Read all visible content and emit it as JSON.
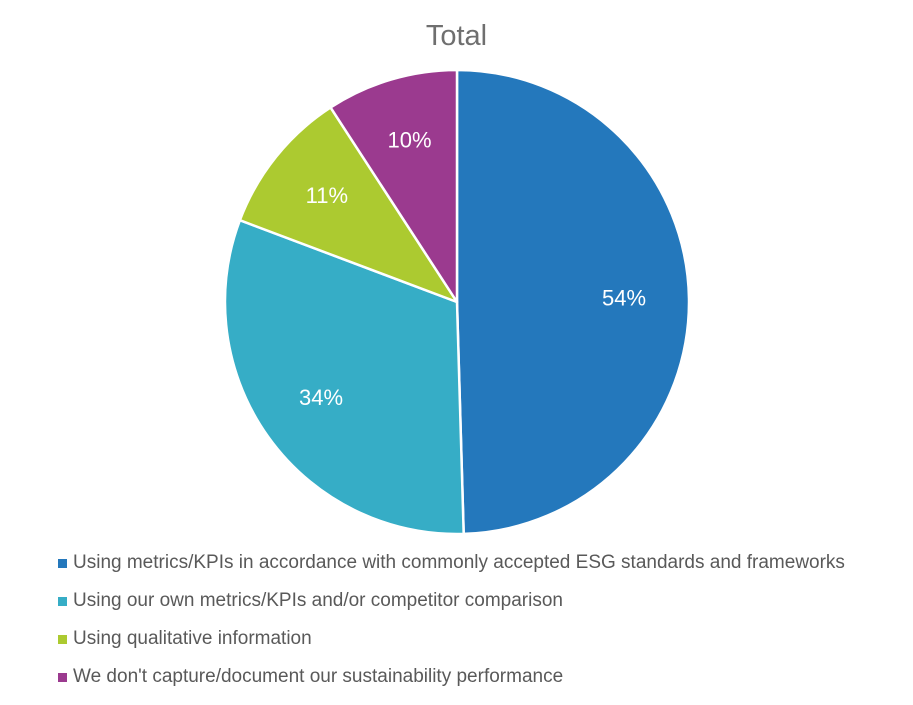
{
  "chart_data": {
    "type": "pie",
    "title": "Total",
    "slices": [
      {
        "label": "Using metrics/KPIs in accordance with commonly accepted ESG standards and frameworks",
        "value": 54,
        "display": "54%",
        "color": "#2478bc"
      },
      {
        "label": "Using our own metrics/KPIs and/or competitor comparison",
        "value": 34,
        "display": "34%",
        "color": "#36adc6"
      },
      {
        "label": "Using qualitative information",
        "value": 11,
        "display": "11%",
        "color": "#acca30"
      },
      {
        "label": "We don't capture/document our sustainability performance",
        "value": 10,
        "display": "10%",
        "color": "#9b3a8f"
      }
    ],
    "legend_position": "bottom"
  }
}
